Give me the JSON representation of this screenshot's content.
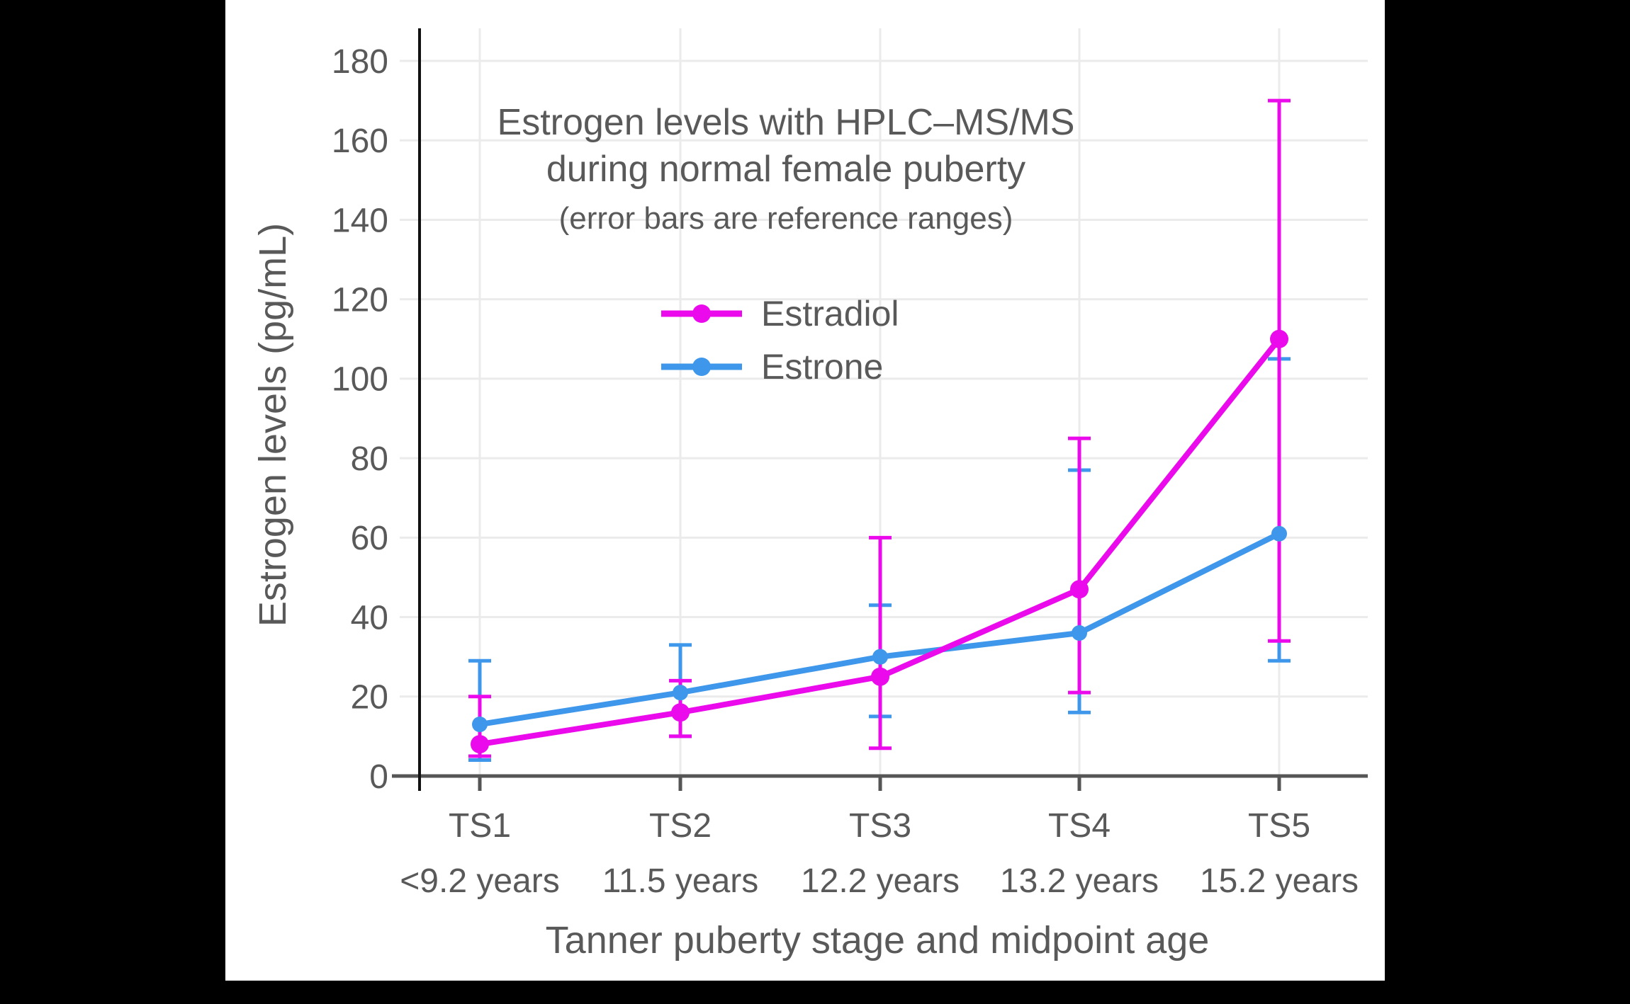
{
  "colors": {
    "page_background": "#000000",
    "canvas_background": "#ffffff",
    "text": "#595959",
    "grid": "#EBEBEB",
    "x_axis": "#555555",
    "y_spine": "#111111"
  },
  "chart_data": {
    "type": "line",
    "title_lines": [
      "Estrogen levels with HPLC–MS/MS",
      "during normal female puberty"
    ],
    "subtitle": "(error bars are reference ranges)",
    "xlabel": "Tanner puberty stage and midpoint age",
    "ylabel": "Estrogen levels (pg/mL)",
    "categories": [
      "TS1",
      "TS2",
      "TS3",
      "TS4",
      "TS5"
    ],
    "category_sublabels": [
      "<9.2 years",
      "11.5 years",
      "12.2 years",
      "13.2 years",
      "15.2 years"
    ],
    "y_ticks": [
      0,
      20,
      40,
      60,
      80,
      100,
      120,
      140,
      160,
      180
    ],
    "ylim": [
      0,
      187
    ],
    "grid": true,
    "legend_position": "upper-left-inside",
    "error_bar_meaning": "reference ranges",
    "series": [
      {
        "name": "Estradiol",
        "color": "#EB0AEB",
        "values": [
          8,
          16,
          25,
          47,
          110
        ],
        "error_low": [
          5,
          10,
          7,
          21,
          34
        ],
        "error_high": [
          20,
          24,
          60,
          85,
          170
        ]
      },
      {
        "name": "Estrone",
        "color": "#3E97EA",
        "values": [
          13,
          21,
          30,
          36,
          61
        ],
        "error_low": [
          4,
          10,
          15,
          16,
          29
        ],
        "error_high": [
          29,
          33,
          43,
          77,
          105
        ]
      }
    ]
  }
}
